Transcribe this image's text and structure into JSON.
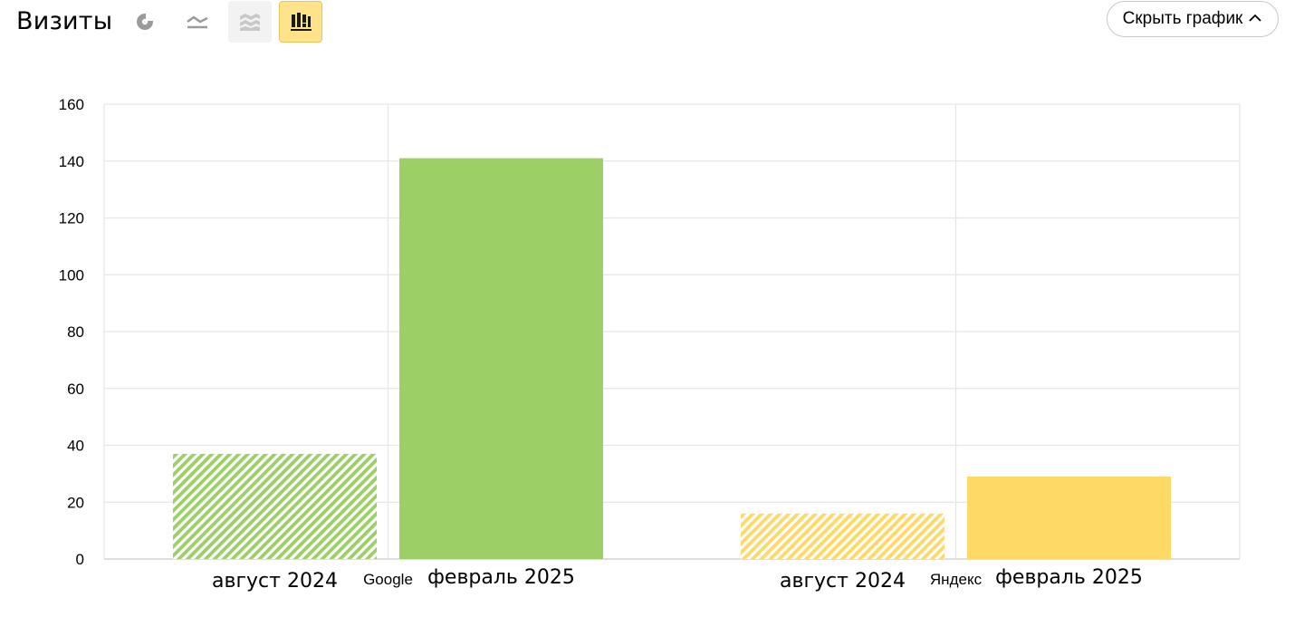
{
  "header": {
    "title": "Визиты",
    "views": [
      {
        "icon": "pie-chart-icon",
        "state": "normal"
      },
      {
        "icon": "line-chart-icon",
        "state": "normal"
      },
      {
        "icon": "area-chart-icon",
        "state": "disabled"
      },
      {
        "icon": "bar-chart-icon",
        "state": "active"
      }
    ],
    "hide_chart_label": "Скрыть график"
  },
  "colors": {
    "google": "#9ccf66",
    "yandex": "#ffd966",
    "grid": "#e6e6e6",
    "active_bg": "#ffe38a"
  },
  "chart_data": {
    "type": "bar",
    "ylim": [
      0,
      160
    ],
    "yticks": [
      0,
      20,
      40,
      60,
      80,
      100,
      120,
      140,
      160
    ],
    "grid": true,
    "groups": [
      {
        "name": "Google",
        "bars": [
          {
            "period": "август 2024",
            "value": 37,
            "hatched": true
          },
          {
            "period": "февраль 2025",
            "value": 141,
            "hatched": false
          }
        ]
      },
      {
        "name": "Яндекс",
        "bars": [
          {
            "period": "август 2024",
            "value": 16,
            "hatched": true
          },
          {
            "period": "февраль 2025",
            "value": 29,
            "hatched": false
          }
        ]
      }
    ]
  }
}
